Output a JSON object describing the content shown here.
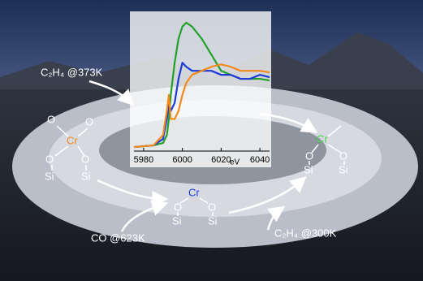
{
  "chart_data": {
    "type": "line",
    "x": [
      5975,
      5985,
      5990,
      5992,
      5993,
      5994,
      5996,
      5998,
      6000,
      6002,
      6005,
      6010,
      6015,
      6020,
      6025,
      6030,
      6035,
      6040,
      6045
    ],
    "series": [
      {
        "color": "#23a02a",
        "values": [
          0.05,
          0.07,
          0.1,
          0.2,
          0.4,
          0.7,
          1.1,
          1.4,
          1.55,
          1.6,
          1.55,
          1.4,
          1.2,
          1.0,
          0.95,
          0.9,
          0.9,
          0.9,
          0.88
        ]
      },
      {
        "color": "#1c3ad6",
        "values": [
          0.05,
          0.07,
          0.15,
          0.4,
          0.6,
          0.5,
          0.6,
          0.9,
          1.1,
          1.05,
          1.0,
          1.0,
          1.0,
          0.95,
          0.95,
          0.9,
          0.9,
          0.95,
          0.92
        ]
      },
      {
        "color": "#f28a1c",
        "values": [
          0.05,
          0.07,
          0.2,
          0.5,
          0.7,
          0.4,
          0.4,
          0.5,
          0.7,
          0.85,
          0.95,
          1.0,
          1.05,
          1.08,
          1.05,
          1.0,
          1.0,
          1.0,
          0.98
        ]
      }
    ],
    "xlim": [
      5975,
      6045
    ],
    "xticks": [
      5980,
      6000,
      6020,
      6040
    ],
    "xlabel": "eV",
    "ylim": [
      0,
      1.7
    ]
  },
  "labels": [
    "C₂H₄ @373K",
    "CO @623K",
    "C₂H₄ @300K"
  ],
  "left_site": {
    "metal": "Cr",
    "oxygens": [
      "O",
      "O",
      "O",
      "O"
    ],
    "silicons": [
      "Si",
      "Si"
    ]
  },
  "middle_site": {
    "metal": "Cr",
    "oxygens": [
      "O",
      "O"
    ],
    "silicons": [
      "Si",
      "Si"
    ]
  },
  "right_site": {
    "metal": "Cr",
    "oxygens": [
      "O",
      "O"
    ],
    "silicons": [
      "Si",
      "Si"
    ]
  }
}
